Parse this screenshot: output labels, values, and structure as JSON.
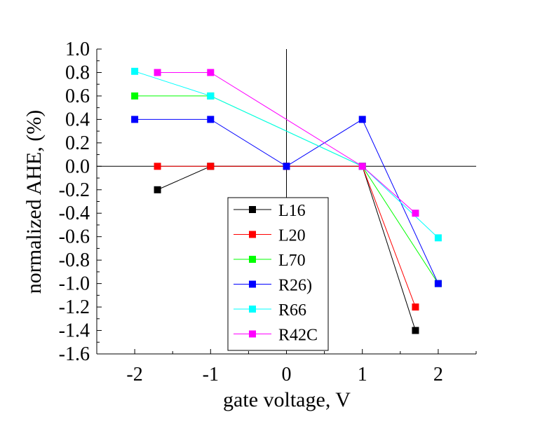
{
  "chart_data": {
    "type": "line",
    "xlabel": "gate voltage, V",
    "ylabel": "normalized AHE, (%)",
    "xlim": [
      -2.5,
      2.5
    ],
    "ylim": [
      -1.6,
      1.0
    ],
    "x_ticks": [
      -2,
      -1,
      0,
      1,
      2
    ],
    "x_tick_labels": [
      "-2",
      "-1",
      "0",
      "1",
      "2"
    ],
    "y_ticks": [
      1.0,
      0.8,
      0.6,
      0.4,
      0.2,
      0.0,
      -0.2,
      -0.4,
      -0.6,
      -0.8,
      -1.0,
      -1.2,
      -1.4,
      -1.6
    ],
    "y_tick_labels": [
      "1.0",
      "0.8",
      "0.6",
      "0.4",
      "0.2",
      "0.0",
      "-0.2",
      "-0.4",
      "-0.6",
      "-0.8",
      "-1.0",
      "-1.2",
      "-1.4",
      "-1.6"
    ],
    "legend_position": "bottom-center",
    "series": [
      {
        "name": "L16",
        "color": "#000000",
        "points": [
          [
            -1.7,
            -0.2
          ],
          [
            -1,
            0.0
          ],
          [
            0,
            0.0
          ],
          [
            1,
            0.0
          ],
          [
            1.7,
            -1.4
          ]
        ]
      },
      {
        "name": "L20",
        "color": "#ff0000",
        "points": [
          [
            -1.7,
            0.0
          ],
          [
            -1,
            0.0
          ],
          [
            0,
            0.0
          ],
          [
            1,
            0.0
          ],
          [
            1.7,
            -1.2
          ]
        ]
      },
      {
        "name": "L70",
        "color": "#00ff00",
        "points": [
          [
            -2,
            0.6
          ],
          [
            -1,
            0.6
          ],
          [
            1,
            0.0
          ],
          [
            2,
            -1.0
          ]
        ]
      },
      {
        "name": "R26)",
        "color": "#0000ff",
        "points": [
          [
            -2,
            0.4
          ],
          [
            -1,
            0.4
          ],
          [
            0,
            0.0
          ],
          [
            1,
            0.4
          ],
          [
            2,
            -1.0
          ]
        ]
      },
      {
        "name": "R66",
        "color": "#00ffff",
        "points": [
          [
            -2,
            0.81
          ],
          [
            -1,
            0.6
          ],
          [
            1,
            0.0
          ],
          [
            2,
            -0.61
          ]
        ]
      },
      {
        "name": "R42C",
        "color": "#ff00ff",
        "points": [
          [
            -1.7,
            0.8
          ],
          [
            -1,
            0.8
          ],
          [
            1,
            0.0
          ],
          [
            1.7,
            -0.4
          ]
        ]
      }
    ]
  }
}
